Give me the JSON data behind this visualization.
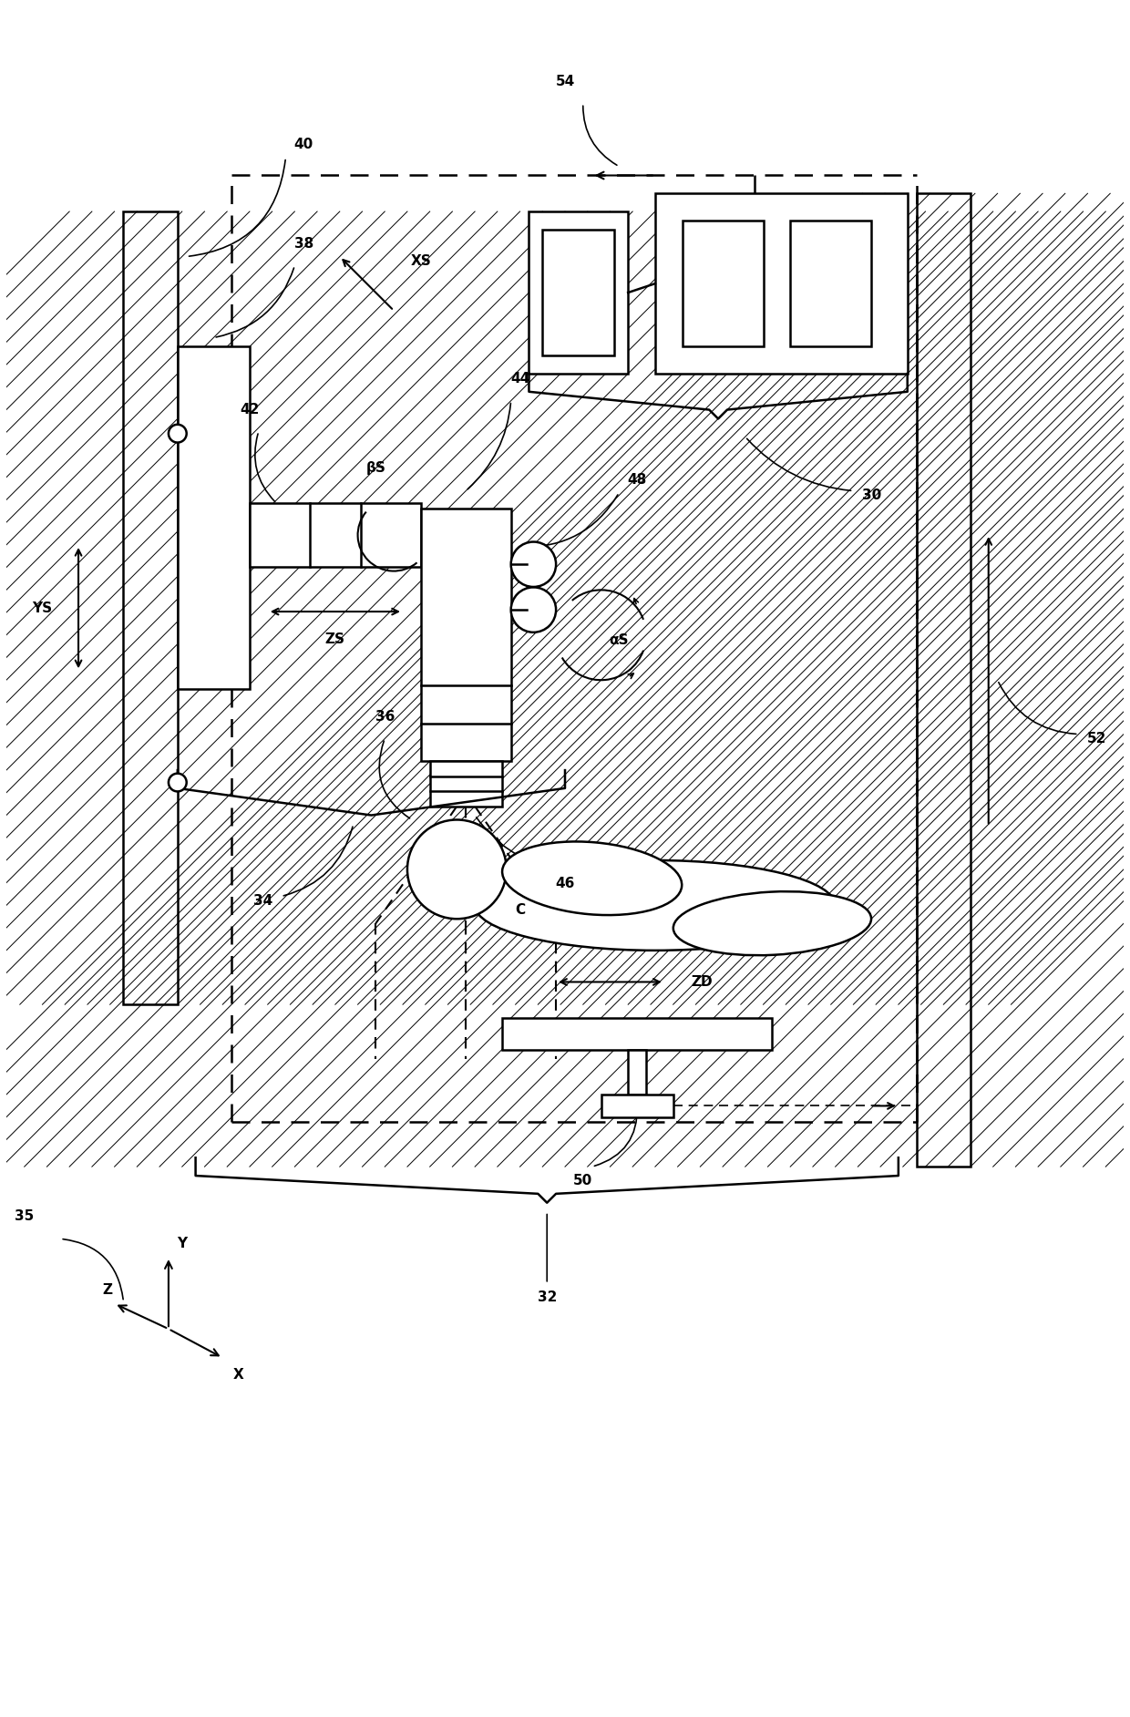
{
  "bg_color": "#ffffff",
  "line_color": "#000000",
  "figsize": [
    12.4,
    18.84
  ],
  "dpi": 100,
  "xlim": [
    0,
    124
  ],
  "ylim": [
    0,
    188.4
  ]
}
